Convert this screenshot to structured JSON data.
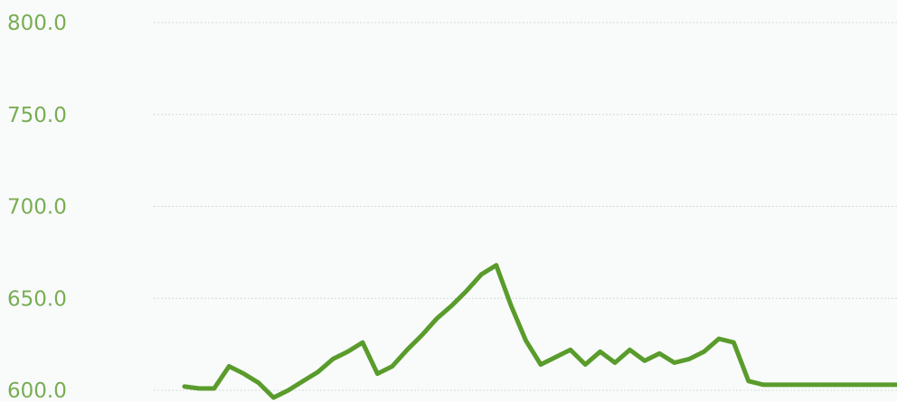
{
  "chart_data": {
    "type": "line",
    "title": "",
    "xlabel": "",
    "ylabel": "",
    "ylim": [
      600,
      800
    ],
    "y_ticks": [
      "800.0",
      "750.0",
      "700.0",
      "650.0",
      "600.0"
    ],
    "grid": true,
    "legend": "none",
    "series": [
      {
        "x": [
          0,
          4,
          8,
          12,
          16,
          20,
          24,
          28,
          32,
          36,
          40,
          44,
          48,
          52,
          56,
          60,
          64,
          68,
          72,
          76,
          80,
          84,
          88,
          92,
          96,
          100,
          104,
          108,
          112,
          116,
          120,
          124,
          128,
          132,
          136,
          140,
          144,
          148,
          152,
          156,
          160,
          164,
          168,
          172,
          176,
          180,
          184,
          188,
          192
        ],
        "values": [
          602,
          601,
          601,
          613,
          609,
          604,
          596,
          600,
          605,
          610,
          617,
          621,
          626,
          609,
          613,
          622,
          630,
          639,
          646,
          654,
          663,
          668,
          646,
          627,
          614,
          618,
          622,
          614,
          621,
          615,
          622,
          616,
          620,
          615,
          617,
          621,
          628,
          626,
          605,
          603,
          603,
          603,
          603,
          603,
          603,
          603,
          603,
          603,
          603
        ]
      }
    ]
  },
  "colors": {
    "line": "#5a9c2c",
    "tick_label": "#79ad54",
    "grid": "#d4d8d8",
    "background": "#f9fbfb"
  }
}
